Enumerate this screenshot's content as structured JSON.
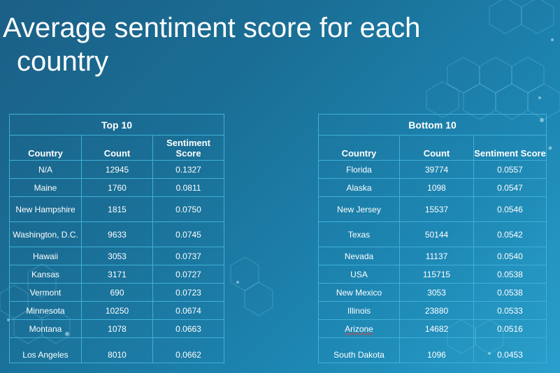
{
  "slide": {
    "title_line1": "Average sentiment score for each",
    "title_line2": "country"
  },
  "top_table": {
    "caption": "Top 10",
    "headers": [
      "Country",
      "Count",
      "Sentiment Score"
    ],
    "rows": [
      [
        "N/A",
        "12945",
        "0.1327"
      ],
      [
        "Maine",
        "1760",
        "0.0811"
      ],
      [
        "New Hampshire",
        "1815",
        "0.0750"
      ],
      [
        "Washington, D.C.",
        "9633",
        "0.0745"
      ],
      [
        "Hawaii",
        "3053",
        "0.0737"
      ],
      [
        "Kansas",
        "3171",
        "0.0727"
      ],
      [
        "Vermont",
        "690",
        "0.0723"
      ],
      [
        "Minnesota",
        "10250",
        "0.0674"
      ],
      [
        "Montana",
        "1078",
        "0.0663"
      ],
      [
        "Los Angeles",
        "8010",
        "0.0662"
      ]
    ]
  },
  "bottom_table": {
    "caption": "Bottom 10",
    "headers": [
      "Country",
      "Count",
      "Sentiment Score"
    ],
    "rows": [
      [
        "Florida",
        "39774",
        "0.0557"
      ],
      [
        "Alaska",
        "1098",
        "0.0547"
      ],
      [
        "New Jersey",
        "15537",
        "0.0546"
      ],
      [
        "Texas",
        "50144",
        "0.0542"
      ],
      [
        "Nevada",
        "11137",
        "0.0540"
      ],
      [
        "USA",
        "115715",
        "0.0538"
      ],
      [
        "New Mexico",
        "3053",
        "0.0538"
      ],
      [
        "Illinois",
        "23880",
        "0.0533"
      ],
      [
        "Arizone",
        "14682",
        "0.0516"
      ],
      [
        "South Dakota",
        "1096",
        "0.0453"
      ]
    ]
  }
}
